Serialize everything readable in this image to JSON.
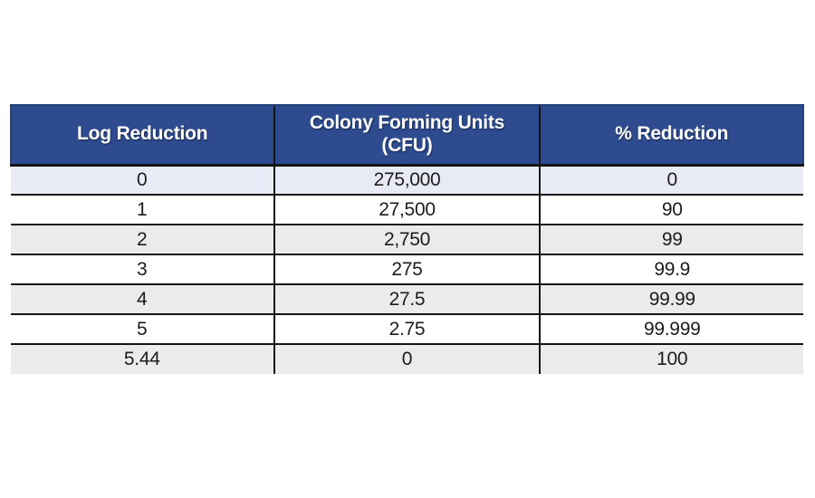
{
  "page": {
    "background": "#ffffff"
  },
  "chart_data": {
    "type": "table",
    "title": "",
    "columns": [
      "Log Reduction",
      "Colony Forming Units\n(CFU)",
      "% Reduction"
    ],
    "rows": [
      [
        "0",
        "275,000",
        "0"
      ],
      [
        "1",
        "27,500",
        "90"
      ],
      [
        "2",
        "2,750",
        "99"
      ],
      [
        "3",
        "275",
        "99.9"
      ],
      [
        "4",
        "27.5",
        "99.99"
      ],
      [
        "5",
        "2.75",
        "99.999"
      ],
      [
        "5.44",
        "0",
        "100"
      ]
    ],
    "layout": {
      "header_rows": 1,
      "striped": true,
      "stripe_pattern": "first row shaded, then alternating",
      "grid": "horizontal and vertical internal black lines, no outer bottom border"
    }
  },
  "colors": {
    "header_bg": "#2d4b8e",
    "header_edge": "#23417d",
    "header_text": "#ffffff",
    "grid_line": "#141414",
    "stripe_first": "#e8ebf5",
    "stripe": "#ebebed",
    "body_text": "#1c1c1c",
    "page_background": "#ffffff"
  }
}
